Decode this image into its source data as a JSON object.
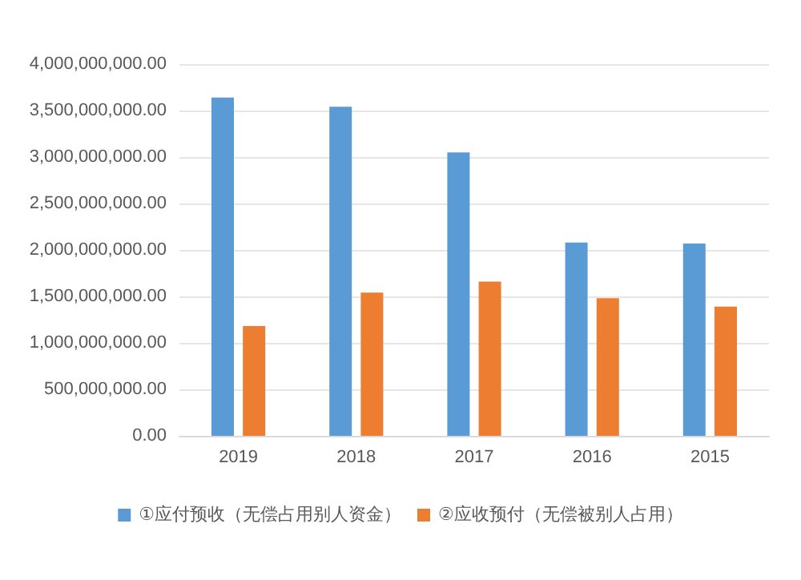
{
  "chart_data": {
    "type": "bar",
    "categories": [
      "2019",
      "2018",
      "2017",
      "2016",
      "2015"
    ],
    "series": [
      {
        "name": "①应付预收（无偿占用别人资金）",
        "color": "#5b9bd5",
        "values": [
          3640000000,
          3540000000,
          3050000000,
          2080000000,
          2070000000
        ]
      },
      {
        "name": "②应收预付（无偿被别人占用）",
        "color": "#ed7d31",
        "values": [
          1180000000,
          1540000000,
          1660000000,
          1480000000,
          1390000000
        ]
      }
    ],
    "ylim": [
      0,
      4000000000
    ],
    "yticks": [
      {
        "value": 0,
        "label": "0.00"
      },
      {
        "value": 500000000,
        "label": "500,000,000.00"
      },
      {
        "value": 1000000000,
        "label": "1,000,000,000.00"
      },
      {
        "value": 1500000000,
        "label": "1,500,000,000.00"
      },
      {
        "value": 2000000000,
        "label": "2,000,000,000.00"
      },
      {
        "value": 2500000000,
        "label": "2,500,000,000.00"
      },
      {
        "value": 3000000000,
        "label": "3,000,000,000.00"
      },
      {
        "value": 3500000000,
        "label": "3,500,000,000.00"
      },
      {
        "value": 4000000000,
        "label": "4,000,000,000.00"
      }
    ],
    "grid": "y",
    "legend": "bottom"
  }
}
